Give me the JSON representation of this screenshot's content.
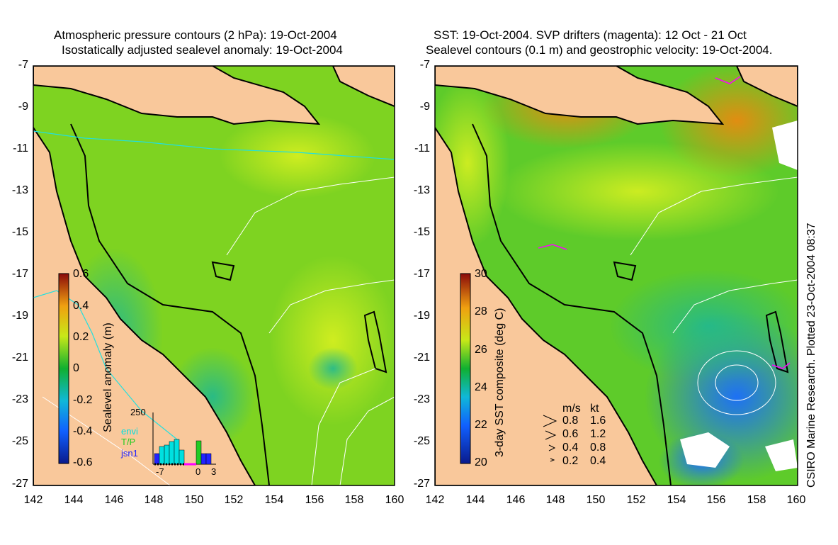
{
  "left_panel": {
    "title_line1": "Atmospheric pressure contours (2 hPa): 19-Oct-2004",
    "title_line2": "Isostatically adjusted sealevel anomaly: 19-Oct-2004",
    "colorbar_label": "Sealevel anomaly (m)",
    "colorbar_ticks": [
      "0.6",
      "0.4",
      "0.2",
      "0",
      "-0.2",
      "-0.4",
      "-0.6"
    ],
    "colorbar_range": [
      -0.6,
      0.6
    ],
    "inset": {
      "y_tick": "250",
      "x_ticks": [
        "-7",
        "0",
        "3"
      ],
      "legend": [
        {
          "label": "envi",
          "color": "#00e0e0"
        },
        {
          "label": "T/P",
          "color": "#22cc22"
        },
        {
          "label": "jsn1",
          "color": "#2222ff"
        }
      ]
    }
  },
  "right_panel": {
    "title_line1": "SST: 19-Oct-2004. SVP drifters (magenta): 12 Oct - 21 Oct",
    "title_line2": "Sealevel contours (0.1 m) and geostrophic velocity: 19-Oct-2004.",
    "colorbar_label": "3-day SST composite (deg C)",
    "colorbar_ticks": [
      "30",
      "28",
      "26",
      "24",
      "22",
      "20"
    ],
    "colorbar_range": [
      20,
      30
    ],
    "velocity_key": {
      "header_ms": "m/s",
      "header_kt": "kt",
      "rows": [
        {
          "ms": "0.8",
          "kt": "1.6"
        },
        {
          "ms": "0.6",
          "kt": "1.2"
        },
        {
          "ms": "0.4",
          "kt": "0.8"
        },
        {
          "ms": "0.2",
          "kt": "0.4"
        }
      ]
    }
  },
  "axes": {
    "lat_ticks": [
      "-7",
      "-9",
      "-11",
      "-13",
      "-15",
      "-17",
      "-19",
      "-21",
      "-23",
      "-25",
      "-27"
    ],
    "lon_ticks": [
      "142",
      "144",
      "146",
      "148",
      "150",
      "152",
      "154",
      "156",
      "158",
      "160"
    ],
    "lat_range": [
      -27,
      -7
    ],
    "lon_range": [
      142,
      160
    ]
  },
  "credit": "CSIRO Marine Research. Plotted 23-Oct-2004 08:37",
  "colors": {
    "land": "#f9c89b",
    "sea_mid": "#7ed321",
    "sea_low": "#2fbf5a",
    "sst_warm": "#e88a10",
    "sst_cool": "#1e90ff",
    "drifter": "#ff00ff"
  }
}
